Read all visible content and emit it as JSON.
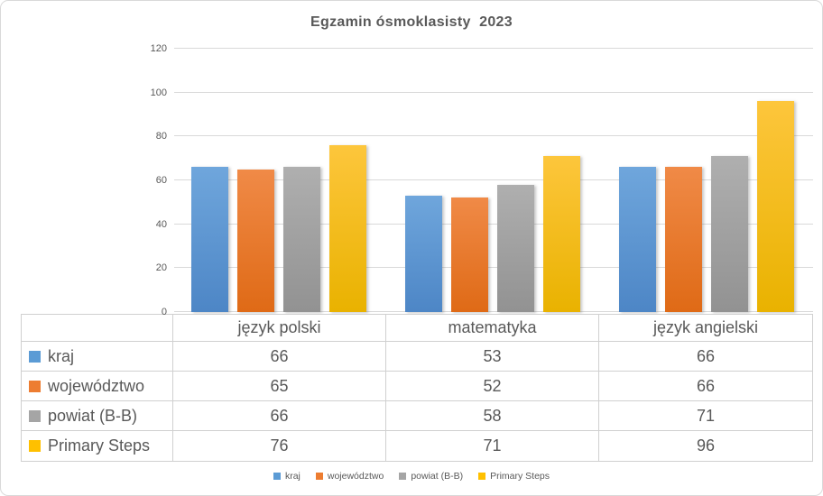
{
  "title": "Egzamin ósmoklasisty  2023",
  "chart_data": {
    "type": "bar",
    "title": "Egzamin ósmoklasisty  2023",
    "categories": [
      "język polski",
      "matematyka",
      "język angielski"
    ],
    "series": [
      {
        "name": "kraj",
        "color": "#5B9BD5",
        "color_light": "#6FA6DC",
        "color_dark": "#4D86C6",
        "values": [
          66,
          53,
          66
        ]
      },
      {
        "name": "województwo",
        "color": "#ED7D31",
        "color_light": "#F08A47",
        "color_dark": "#DF6A16",
        "values": [
          65,
          52,
          66
        ]
      },
      {
        "name": "powiat (B-B)",
        "color": "#A5A5A5",
        "color_light": "#AFAFAF",
        "color_dark": "#929292",
        "values": [
          66,
          58,
          71
        ]
      },
      {
        "name": "Primary Steps",
        "color": "#FFC000",
        "color_light": "#FDC63C",
        "color_dark": "#E9B200",
        "values": [
          76,
          71,
          96
        ]
      }
    ],
    "ylim": [
      0,
      120
    ],
    "yticks": [
      0,
      20,
      40,
      60,
      80,
      100,
      120
    ],
    "grid": true,
    "legend_position": "bottom",
    "data_table_shown": true,
    "text_color": "#595959",
    "gridline_color": "#D9D9D9"
  }
}
